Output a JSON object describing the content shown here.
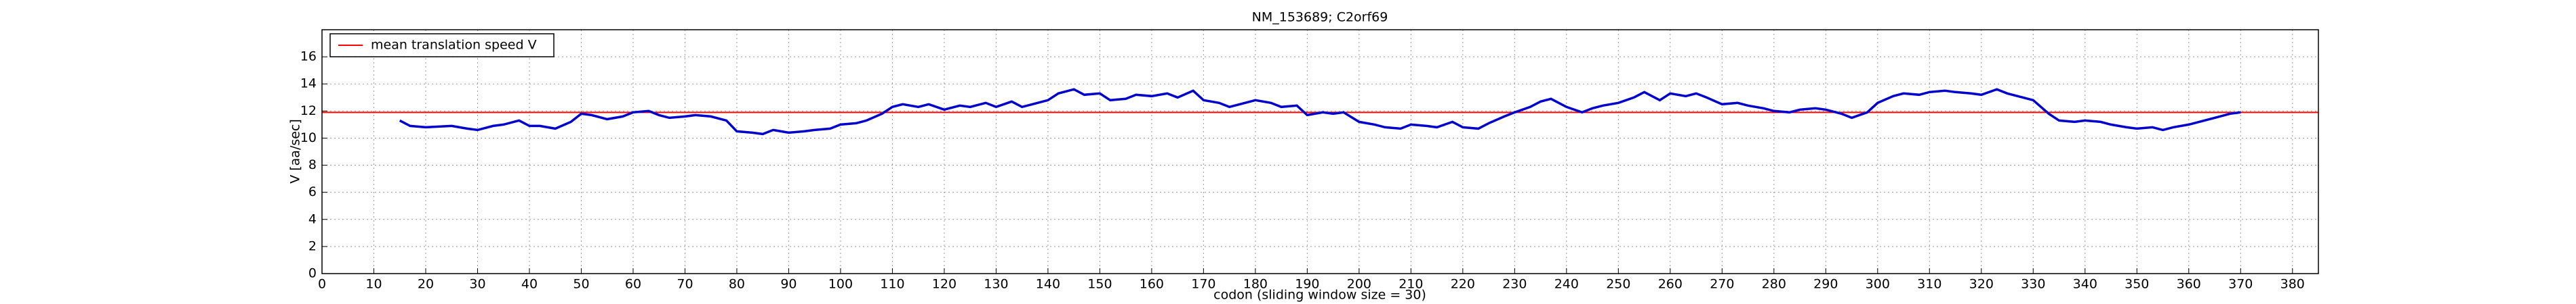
{
  "chart_data": {
    "type": "line",
    "title": "NM_153689; C2orf69",
    "xlabel": "codon  (sliding window size = 30)",
    "ylabel": "V [aa/sec]",
    "xlim": [
      0,
      385
    ],
    "ylim": [
      0,
      18
    ],
    "xticks": [
      0,
      10,
      20,
      30,
      40,
      50,
      60,
      70,
      80,
      90,
      100,
      110,
      120,
      130,
      140,
      150,
      160,
      170,
      180,
      190,
      200,
      210,
      220,
      230,
      240,
      250,
      260,
      270,
      280,
      290,
      300,
      310,
      320,
      330,
      340,
      350,
      360,
      370,
      380
    ],
    "yticks": [
      0,
      2,
      4,
      6,
      8,
      10,
      12,
      14,
      16
    ],
    "grid": true,
    "legend": "upper left",
    "x": [
      15,
      17,
      20,
      25,
      28,
      30,
      33,
      35,
      38,
      40,
      42,
      45,
      48,
      50,
      52,
      55,
      58,
      60,
      63,
      65,
      67,
      70,
      72,
      75,
      78,
      80,
      83,
      85,
      87,
      90,
      93,
      95,
      98,
      100,
      103,
      105,
      108,
      110,
      112,
      115,
      117,
      120,
      123,
      125,
      128,
      130,
      133,
      135,
      137,
      140,
      142,
      145,
      147,
      150,
      152,
      155,
      157,
      160,
      163,
      165,
      168,
      170,
      173,
      175,
      178,
      180,
      183,
      185,
      188,
      190,
      193,
      195,
      197,
      200,
      203,
      205,
      208,
      210,
      213,
      215,
      218,
      220,
      223,
      225,
      228,
      230,
      233,
      235,
      237,
      240,
      243,
      245,
      247,
      250,
      253,
      255,
      258,
      260,
      263,
      265,
      267,
      270,
      273,
      275,
      278,
      280,
      283,
      285,
      288,
      290,
      293,
      295,
      298,
      300,
      303,
      305,
      308,
      310,
      313,
      315,
      318,
      320,
      323,
      325,
      328,
      330,
      333,
      335,
      338,
      340,
      343,
      345,
      348,
      350,
      353,
      355,
      357,
      360,
      363,
      365,
      368,
      370
    ],
    "series": [
      {
        "color": "#0000cc",
        "values": [
          11.3,
          10.9,
          10.8,
          10.9,
          10.7,
          10.6,
          10.9,
          11.0,
          11.3,
          10.9,
          10.9,
          10.7,
          11.2,
          11.8,
          11.7,
          11.4,
          11.6,
          11.9,
          12.0,
          11.7,
          11.5,
          11.6,
          11.7,
          11.6,
          11.3,
          10.5,
          10.4,
          10.3,
          10.6,
          10.4,
          10.5,
          10.6,
          10.7,
          11.0,
          11.1,
          11.3,
          11.8,
          12.3,
          12.5,
          12.3,
          12.5,
          12.1,
          12.4,
          12.3,
          12.6,
          12.3,
          12.7,
          12.3,
          12.5,
          12.8,
          13.3,
          13.6,
          13.2,
          13.3,
          12.8,
          12.9,
          13.2,
          13.1,
          13.3,
          13.0,
          13.5,
          12.8,
          12.6,
          12.3,
          12.6,
          12.8,
          12.6,
          12.3,
          12.4,
          11.7,
          11.9,
          11.8,
          11.9,
          11.2,
          11.0,
          10.8,
          10.7,
          11.0,
          10.9,
          10.8,
          11.2,
          10.8,
          10.7,
          11.1,
          11.6,
          11.9,
          12.3,
          12.7,
          12.9,
          12.3,
          11.9,
          12.2,
          12.4,
          12.6,
          13.0,
          13.4,
          12.8,
          13.3,
          13.1,
          13.3,
          13.0,
          12.5,
          12.6,
          12.4,
          12.2,
          12.0,
          11.9,
          12.1,
          12.2,
          12.1,
          11.8,
          11.5,
          11.9,
          12.6,
          13.1,
          13.3,
          13.2,
          13.4,
          13.5,
          13.4,
          13.3,
          13.2,
          13.6,
          13.3,
          13.0,
          12.8,
          11.8,
          11.3,
          11.2,
          11.3,
          11.2,
          11.0,
          10.8,
          10.7,
          10.8,
          10.6,
          10.8,
          11.0,
          11.3,
          11.5,
          11.8,
          11.9
        ]
      }
    ],
    "hline": {
      "name": "mean translation speed V",
      "value": 11.9,
      "color": "#ff0000"
    }
  }
}
